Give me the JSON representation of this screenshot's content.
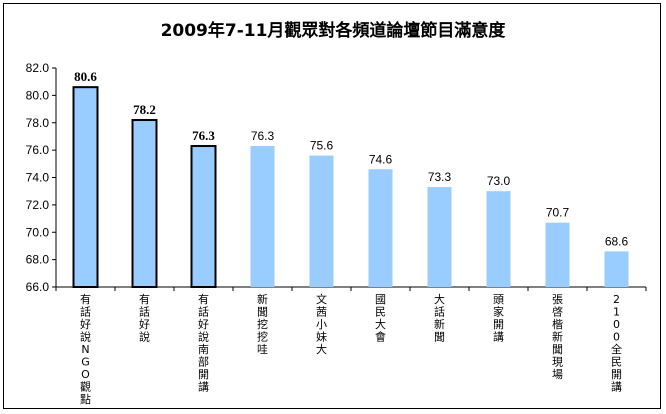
{
  "chart_data": {
    "type": "bar",
    "title": "2009年7-11月觀眾對各頻道論壇節目滿意度",
    "xlabel": "",
    "ylabel": "",
    "ylim": [
      66.0,
      82.0
    ],
    "yticks": [
      "66.0",
      "68.0",
      "70.0",
      "72.0",
      "74.0",
      "76.0",
      "78.0",
      "80.0",
      "82.0"
    ],
    "categories": [
      "有話好說NGO觀點",
      "有話好說",
      "有話好說南部開講",
      "新聞挖挖哇",
      "文茜小妹大",
      "國民大會",
      "大話新聞",
      "頭家開講",
      "張啓楷新聞現場",
      "2100全民開講"
    ],
    "values": [
      80.6,
      78.2,
      76.3,
      76.3,
      75.6,
      74.6,
      73.3,
      73.0,
      70.7,
      68.6
    ],
    "value_labels": [
      "80.6",
      "78.2",
      "76.3",
      "76.3",
      "75.6",
      "74.6",
      "73.3",
      "73.0",
      "70.7",
      "68.6"
    ],
    "highlighted": [
      true,
      true,
      true,
      false,
      false,
      false,
      false,
      false,
      false,
      false
    ],
    "grid": false,
    "legend": "none",
    "colors": {
      "bar": "#99ccff",
      "highlight_border": "#000000",
      "axis": "#000000"
    }
  }
}
